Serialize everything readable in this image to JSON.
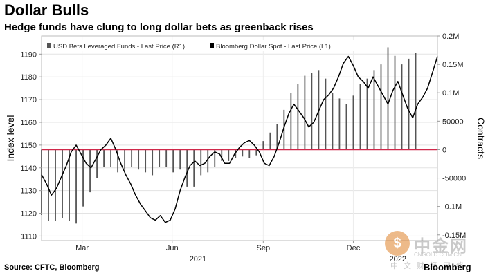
{
  "header": {
    "title": "Dollar Bulls",
    "subtitle": "Hedge funds have clung to long dollar bets as greenback rises"
  },
  "footer": {
    "source": "Source: CFTC, Bloomberg",
    "brand": "Bloomberg"
  },
  "watermark": {
    "name": "中金网",
    "domain": "CNGOLD.COM.CN",
    "sub": "中文财经网络"
  },
  "chart_data": {
    "type": "bar+line",
    "legend": [
      {
        "label": "USD Bets Leveraged Funds - Last Price (R1)",
        "color": "#555555"
      },
      {
        "label": "Bloomberg Dollar Spot - Last Price (L1)",
        "color": "#000000"
      }
    ],
    "y_left": {
      "label": "Index level",
      "range": [
        1108,
        1198
      ],
      "ticks": [
        1110,
        1120,
        1130,
        1140,
        1150,
        1160,
        1170,
        1180,
        1190
      ]
    },
    "y_right": {
      "label": "Contracts",
      "range": [
        -160000,
        200000
      ],
      "ticks": [
        -150000,
        -100000,
        -50000,
        0,
        50000,
        100000,
        150000,
        200000
      ],
      "tick_labels": [
        "-0.15M",
        "-0.1M",
        "-50000",
        "0",
        "50000",
        "0.1M",
        "0.15M",
        "0.2M"
      ]
    },
    "x_axis": {
      "range": [
        0,
        400
      ],
      "ticks": [
        {
          "label": "Mar",
          "pos": 41
        },
        {
          "label": "Jun",
          "pos": 132
        },
        {
          "label": "Sep",
          "pos": 224
        },
        {
          "label": "Dec",
          "pos": 315
        }
      ],
      "year_labels": [
        {
          "label": "2021",
          "pos": 158
        },
        {
          "label": "2022",
          "pos": 360
        }
      ]
    },
    "zero_line": {
      "value": 0,
      "color": "#d0284a"
    },
    "bars": {
      "name": "USD Bets Leveraged Funds",
      "x": [
        0,
        7,
        14,
        21,
        28,
        35,
        42,
        49,
        56,
        63,
        70,
        77,
        84,
        91,
        98,
        105,
        112,
        119,
        126,
        133,
        140,
        147,
        154,
        161,
        168,
        175,
        182,
        189,
        196,
        203,
        210,
        217,
        224,
        231,
        238,
        245,
        252,
        259,
        266,
        273,
        280,
        287,
        294,
        301,
        308,
        315,
        322,
        329,
        336,
        343,
        350,
        357,
        364,
        371,
        378
      ],
      "values": [
        -115000,
        -125000,
        -125000,
        -120000,
        -125000,
        -130000,
        -100000,
        -75000,
        -50000,
        -30000,
        -30000,
        -40000,
        -35000,
        -30000,
        -35000,
        -40000,
        -45000,
        -30000,
        -30000,
        -40000,
        -35000,
        -65000,
        -65000,
        -45000,
        -40000,
        -30000,
        -20000,
        -20000,
        -15000,
        -12000,
        -15000,
        -10000,
        15000,
        30000,
        45000,
        70000,
        100000,
        115000,
        130000,
        135000,
        140000,
        125000,
        100000,
        90000,
        80000,
        95000,
        115000,
        125000,
        140000,
        150000,
        180000,
        165000,
        150000,
        160000,
        170000
      ]
    },
    "line": {
      "name": "Bloomberg Dollar Spot",
      "x": [
        0,
        5,
        10,
        15,
        20,
        25,
        30,
        35,
        40,
        45,
        50,
        55,
        60,
        65,
        70,
        75,
        80,
        85,
        90,
        95,
        100,
        105,
        110,
        115,
        120,
        125,
        130,
        135,
        140,
        145,
        150,
        155,
        160,
        165,
        170,
        175,
        180,
        185,
        190,
        195,
        200,
        205,
        210,
        215,
        220,
        225,
        230,
        235,
        240,
        245,
        250,
        255,
        260,
        265,
        270,
        275,
        280,
        285,
        290,
        295,
        300,
        305,
        310,
        315,
        320,
        325,
        330,
        335,
        340,
        345,
        350,
        355,
        360,
        365,
        370,
        375,
        380,
        385,
        390,
        395,
        400
      ],
      "values": [
        1137,
        1133,
        1128,
        1131,
        1136,
        1141,
        1147,
        1150,
        1146,
        1142,
        1140,
        1144,
        1148,
        1150,
        1153,
        1148,
        1142,
        1137,
        1133,
        1128,
        1124,
        1121,
        1118,
        1117,
        1119,
        1116,
        1117,
        1122,
        1130,
        1136,
        1141,
        1143,
        1141,
        1142,
        1145,
        1147,
        1146,
        1142,
        1142,
        1146,
        1149,
        1151,
        1152,
        1150,
        1147,
        1142,
        1141,
        1145,
        1151,
        1158,
        1164,
        1168,
        1165,
        1162,
        1158,
        1160,
        1165,
        1170,
        1172,
        1175,
        1180,
        1186,
        1189,
        1185,
        1180,
        1178,
        1175,
        1180,
        1176,
        1172,
        1168,
        1174,
        1178,
        1172,
        1166,
        1162,
        1168,
        1171,
        1175,
        1182,
        1189
      ]
    }
  }
}
